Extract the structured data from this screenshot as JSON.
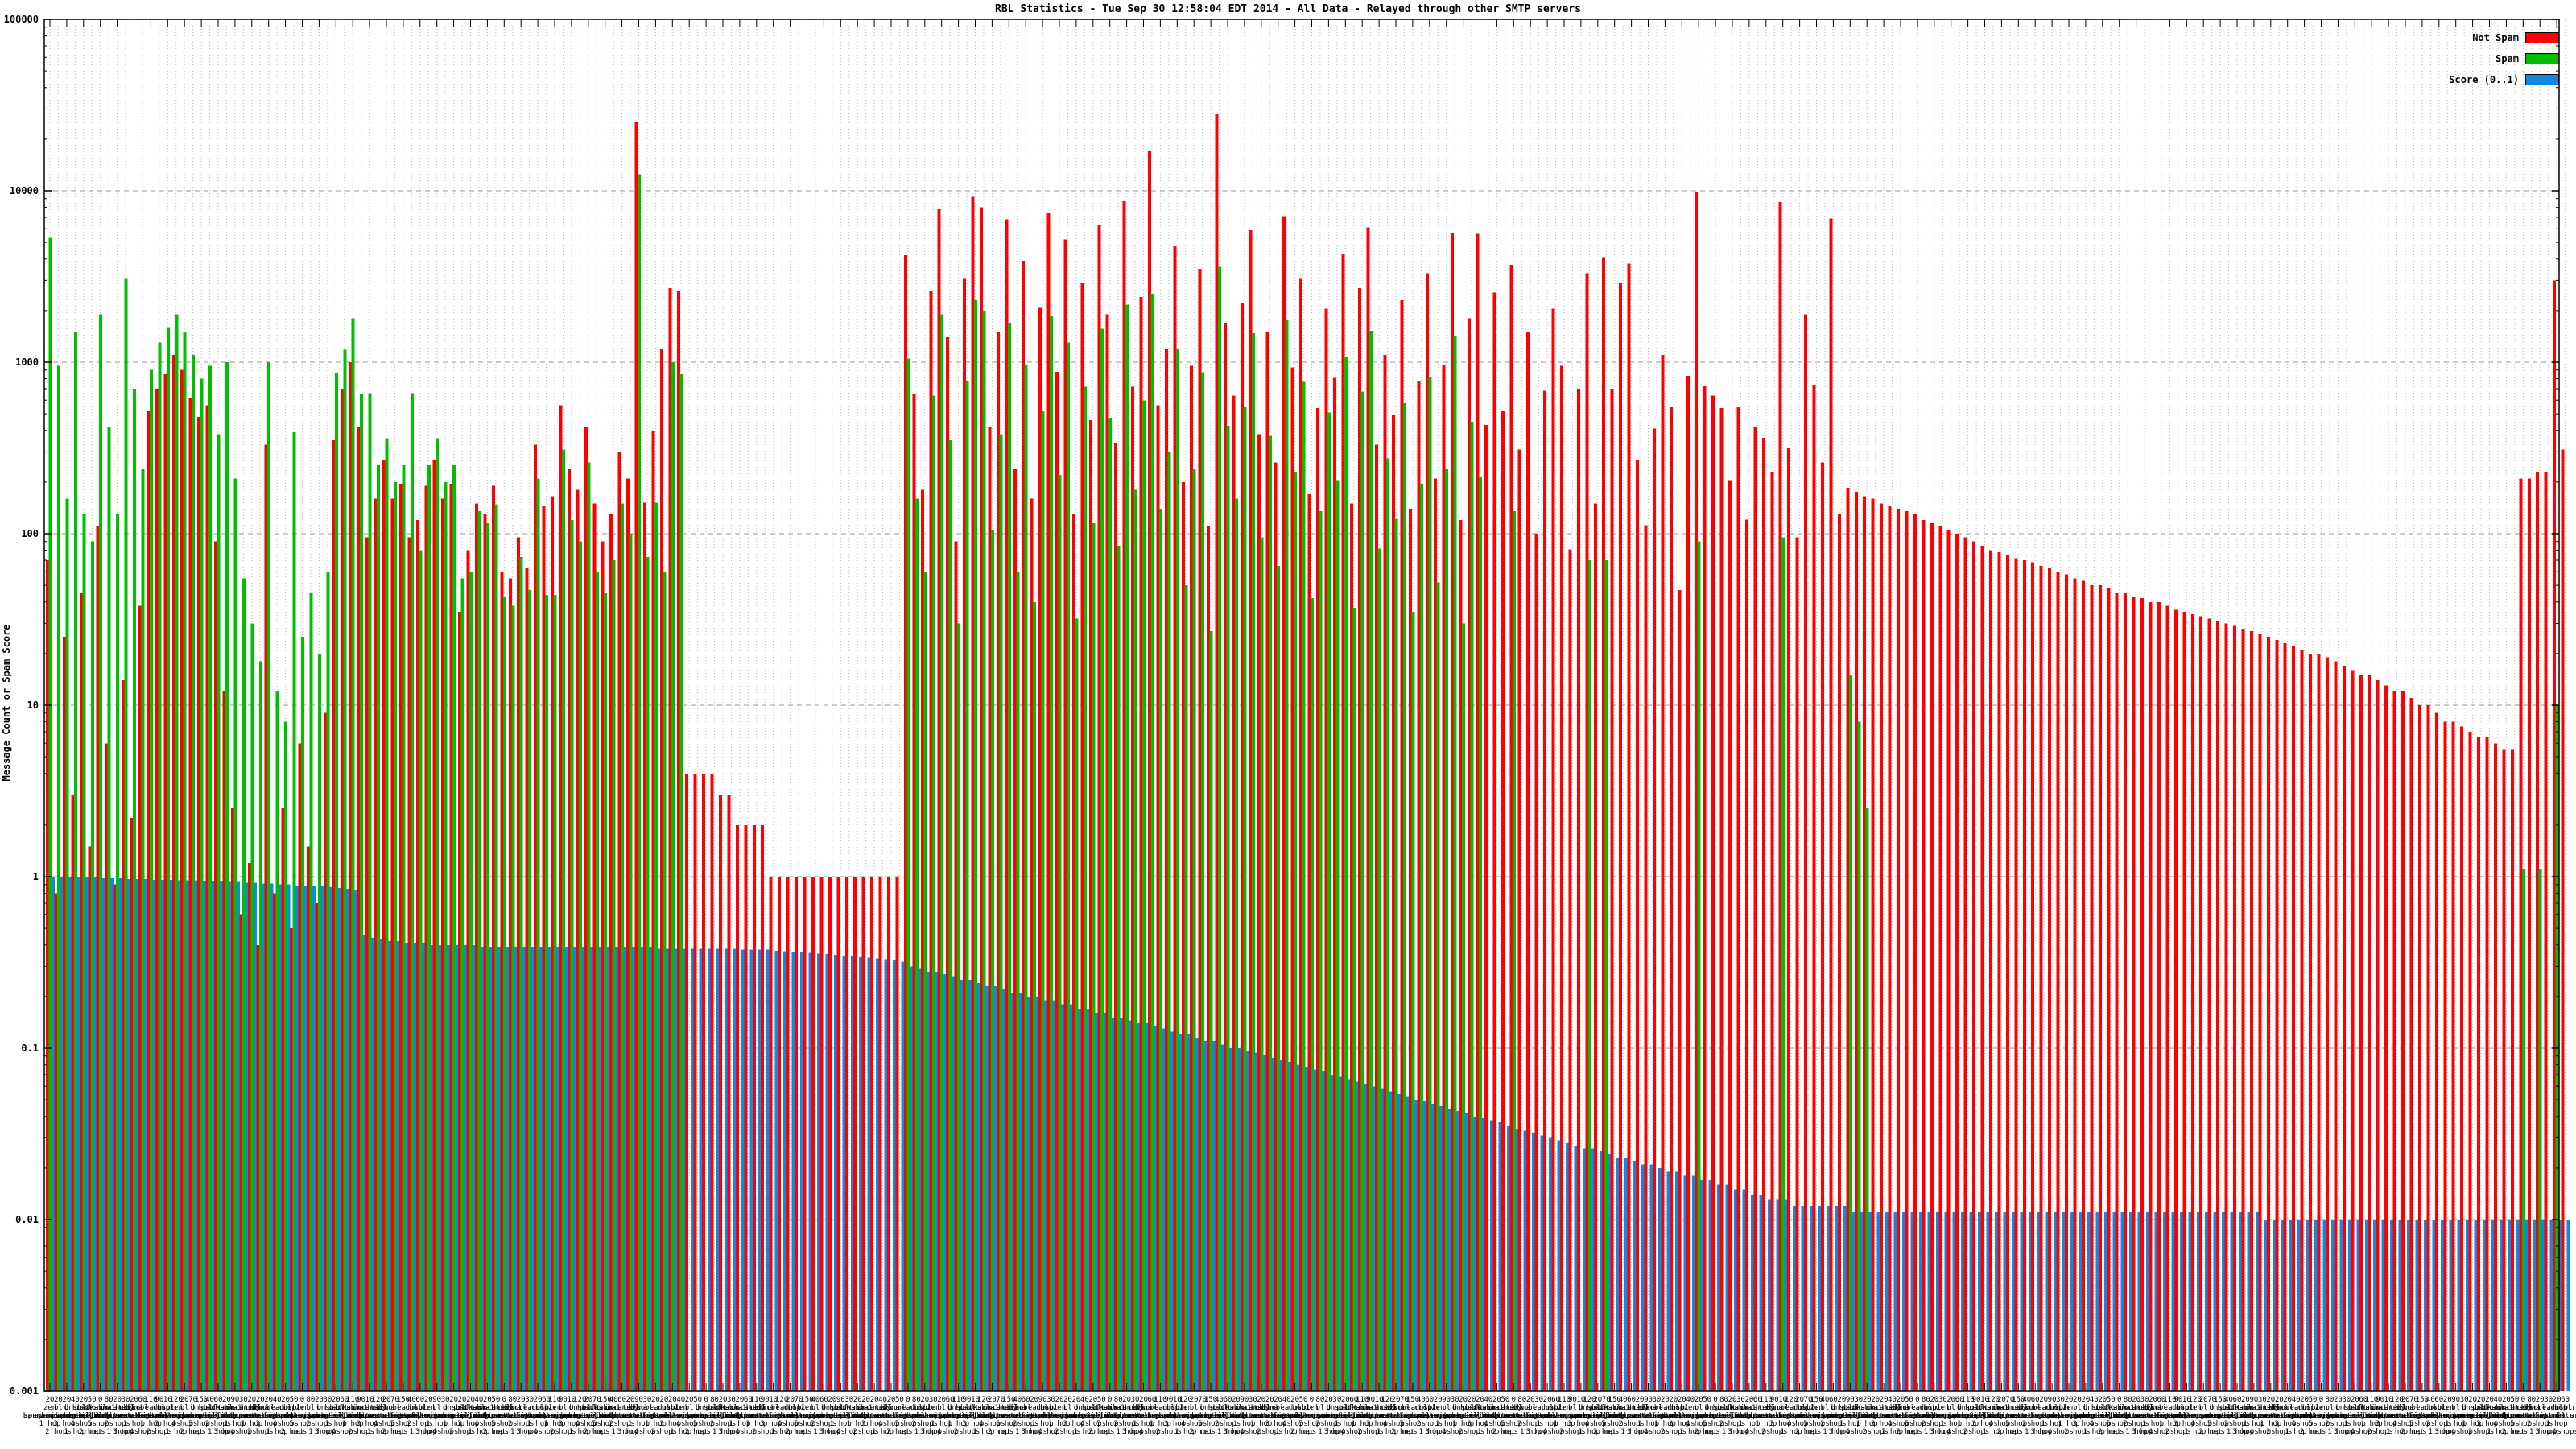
{
  "title": "RBL Statistics - Tue Sep 30 12:58:04 EDT 2014 - All Data - Relayed through other SMTP servers",
  "legend": {
    "not_spam_label": "Not Spam",
    "spam_label": "Spam",
    "score_label": "Score (0..1)"
  },
  "colors": {
    "not_spam": "#ff0000",
    "spam": "#00bf00",
    "score": "#1287e0",
    "grid_v": "#b8b8b8",
    "grid_h": "#9a9a9a",
    "frame": "#000000"
  },
  "y_axis": {
    "title": "Message Count or Spam Score",
    "tick_labels": [
      "100000",
      "10000",
      "1000",
      "100",
      "10",
      "1",
      "0.1",
      "0.01",
      "0.001"
    ],
    "tick_values": [
      100000,
      10000,
      1000,
      100,
      10,
      1,
      0.1,
      0.01,
      0.001
    ]
  },
  "chart_data": {
    "type": "bar",
    "y_scale": "log",
    "ylim": [
      0.001,
      100000
    ],
    "grid": true,
    "legend_position": "top-right",
    "series_names": [
      "Not Spam",
      "Spam",
      "Score (0..1)"
    ],
    "x_label_pools": {
      "counts": [
        20,
        20,
        20,
        40,
        20,
        50,
        0,
        80,
        20,
        30,
        20,
        60,
        110,
        90,
        10,
        120,
        20,
        70,
        150,
        40,
        60,
        20,
        90,
        30
      ],
      "hosts": [
        [
          "zen",
          "spamhaus.org"
        ],
        [
          "bl",
          "spamcop.net"
        ],
        [
          "b",
          "barracudacentral.org"
        ],
        [
          "dnsbl",
          "sorbs.net"
        ],
        [
          "psbl",
          "surriel.com"
        ],
        [
          "hostkarma",
          "junkemailfilter.com"
        ],
        [
          "dnsbl-1",
          "uceprotect.net"
        ],
        [
          "truncate",
          "gbudb.net"
        ],
        [
          "ix.dnsbl",
          "manitu.net"
        ],
        [
          "cbl",
          "abuseat.org"
        ],
        [
          "dyna",
          "spamrats.com"
        ],
        [
          "korea",
          "services.net"
        ],
        [
          "virbl.dnsbl",
          "bit.nl"
        ],
        [
          "rbl",
          "efnetrbl.org"
        ],
        [
          "noptr",
          "spamrats.com"
        ]
      ],
      "hops": [
        "1 hop",
        "2 hops",
        "3 hops",
        "1 hop",
        "4 hops",
        "2 hops",
        "5 hops",
        "net 1 hop",
        "2 hops",
        "3 hops",
        "1 hop",
        "4 hops"
      ]
    },
    "bars": [
      [
        70,
        5300,
        1
      ],
      [
        0.8,
        950,
        1
      ],
      [
        25,
        160,
        1
      ],
      [
        3,
        1500,
        0.99
      ],
      [
        45,
        130,
        0.99
      ],
      [
        1.5,
        90,
        0.99
      ],
      [
        110,
        1900,
        0.98
      ],
      [
        6,
        420,
        0.98
      ],
      [
        0.9,
        130,
        0.98
      ],
      [
        14,
        3100,
        0.97
      ],
      [
        2.2,
        700,
        0.97
      ],
      [
        38,
        240,
        0.97
      ],
      [
        520,
        900,
        0.96
      ],
      [
        700,
        1300,
        0.96
      ],
      [
        850,
        1600,
        0.96
      ],
      [
        1100,
        1900,
        0.95
      ],
      [
        900,
        1500,
        0.95
      ],
      [
        620,
        1100,
        0.95
      ],
      [
        480,
        800,
        0.94
      ],
      [
        560,
        950,
        0.94
      ],
      [
        90,
        380,
        0.94
      ],
      [
        12,
        1000,
        0.93
      ],
      [
        2.5,
        210,
        0.93
      ],
      [
        0.6,
        55,
        0.92
      ],
      [
        1.2,
        30,
        0.92
      ],
      [
        0.4,
        18,
        0.91
      ],
      [
        330,
        1000,
        0.91
      ],
      [
        0.8,
        12,
        0.9
      ],
      [
        2.5,
        8,
        0.9
      ],
      [
        0.5,
        390,
        0.89
      ],
      [
        6,
        25,
        0.89
      ],
      [
        1.5,
        45,
        0.88
      ],
      [
        0.7,
        20,
        0.88
      ],
      [
        9,
        60,
        0.87
      ],
      [
        350,
        870,
        0.86
      ],
      [
        700,
        1180,
        0.85
      ],
      [
        1000,
        1800,
        0.84
      ],
      [
        420,
        650,
        0.46
      ],
      [
        95,
        660,
        0.44
      ],
      [
        160,
        250,
        0.43
      ],
      [
        270,
        360,
        0.42
      ],
      [
        160,
        200,
        0.42
      ],
      [
        195,
        250,
        0.41
      ],
      [
        95,
        660,
        0.41
      ],
      [
        120,
        80,
        0.41
      ],
      [
        190,
        250,
        0.4
      ],
      [
        270,
        360,
        0.4
      ],
      [
        160,
        200,
        0.4
      ],
      [
        195,
        250,
        0.4
      ],
      [
        35,
        55,
        0.4
      ],
      [
        80,
        60,
        0.4
      ],
      [
        150,
        135,
        0.39
      ],
      [
        130,
        115,
        0.39
      ],
      [
        190,
        148,
        0.39
      ],
      [
        60,
        43,
        0.39
      ],
      [
        55,
        38,
        0.39
      ],
      [
        95,
        73,
        0.39
      ],
      [
        63,
        47,
        0.39
      ],
      [
        330,
        210,
        0.39
      ],
      [
        145,
        44,
        0.39
      ],
      [
        165,
        44,
        0.39
      ],
      [
        560,
        310,
        0.39
      ],
      [
        240,
        120,
        0.39
      ],
      [
        180,
        90,
        0.39
      ],
      [
        420,
        260,
        0.39
      ],
      [
        150,
        60,
        0.39
      ],
      [
        90,
        45,
        0.39
      ],
      [
        130,
        70,
        0.39
      ],
      [
        300,
        150,
        0.39
      ],
      [
        210,
        100,
        0.39
      ],
      [
        25000,
        12500,
        0.39
      ],
      [
        152,
        73,
        0.39
      ],
      [
        400,
        152,
        0.38
      ],
      [
        1200,
        60,
        0.38
      ],
      [
        2700,
        1000,
        0.38
      ],
      [
        2600,
        860,
        0.38
      ],
      [
        4,
        0,
        0.38
      ],
      [
        4,
        0,
        0.38
      ],
      [
        4,
        0,
        0.38
      ],
      [
        4,
        0,
        0.38
      ],
      [
        3,
        0,
        0.38
      ],
      [
        3,
        0,
        0.38
      ],
      [
        2,
        0,
        0.375
      ],
      [
        2,
        0,
        0.375
      ],
      [
        2,
        0,
        0.375
      ],
      [
        2,
        0,
        0.375
      ],
      [
        1,
        0,
        0.37
      ],
      [
        1,
        0,
        0.368
      ],
      [
        1,
        0,
        0.365
      ],
      [
        1,
        0,
        0.362
      ],
      [
        1,
        0,
        0.36
      ],
      [
        1,
        0,
        0.357
      ],
      [
        1,
        0,
        0.354
      ],
      [
        1,
        0,
        0.35
      ],
      [
        1,
        0,
        0.347
      ],
      [
        1,
        0,
        0.344
      ],
      [
        1,
        0,
        0.34
      ],
      [
        1,
        0,
        0.337
      ],
      [
        1,
        0,
        0.333
      ],
      [
        1,
        0,
        0.33
      ],
      [
        1,
        0,
        0.325
      ],
      [
        1,
        0,
        0.32
      ],
      [
        4200,
        1050,
        0.3
      ],
      [
        650,
        160,
        0.29
      ],
      [
        180,
        60,
        0.28
      ],
      [
        2600,
        640,
        0.28
      ],
      [
        7800,
        1900,
        0.27
      ],
      [
        1400,
        350,
        0.26
      ],
      [
        90,
        30,
        0.25
      ],
      [
        3100,
        780,
        0.25
      ],
      [
        9200,
        2300,
        0.24
      ],
      [
        8000,
        2000,
        0.23
      ],
      [
        420,
        105,
        0.23
      ],
      [
        1500,
        380,
        0.22
      ],
      [
        6800,
        1700,
        0.21
      ],
      [
        240,
        60,
        0.21
      ],
      [
        3900,
        970,
        0.2
      ],
      [
        160,
        40,
        0.2
      ],
      [
        2100,
        520,
        0.19
      ],
      [
        7400,
        1850,
        0.19
      ],
      [
        880,
        220,
        0.18
      ],
      [
        5200,
        1300,
        0.18
      ],
      [
        130,
        32,
        0.17
      ],
      [
        2900,
        720,
        0.17
      ],
      [
        460,
        115,
        0.16
      ],
      [
        6300,
        1570,
        0.16
      ],
      [
        1900,
        475,
        0.15
      ],
      [
        340,
        85,
        0.15
      ],
      [
        8700,
        2170,
        0.145
      ],
      [
        720,
        180,
        0.14
      ],
      [
        2400,
        600,
        0.14
      ],
      [
        17000,
        2500,
        0.135
      ],
      [
        560,
        140,
        0.13
      ],
      [
        1200,
        300,
        0.125
      ],
      [
        4800,
        1200,
        0.12
      ],
      [
        200,
        50,
        0.12
      ],
      [
        950,
        240,
        0.115
      ],
      [
        3500,
        875,
        0.11
      ],
      [
        110,
        27,
        0.11
      ],
      [
        28000,
        3600,
        0.105
      ],
      [
        1700,
        425,
        0.1
      ],
      [
        640,
        160,
        0.1
      ],
      [
        2200,
        550,
        0.097
      ],
      [
        5900,
        1475,
        0.094
      ],
      [
        380,
        95,
        0.091
      ],
      [
        1500,
        375,
        0.088
      ],
      [
        260,
        65,
        0.085
      ],
      [
        7100,
        1775,
        0.083
      ],
      [
        930,
        230,
        0.08
      ],
      [
        3100,
        775,
        0.078
      ],
      [
        170,
        42,
        0.075
      ],
      [
        540,
        135,
        0.073
      ],
      [
        2050,
        510,
        0.07
      ],
      [
        820,
        205,
        0.068
      ],
      [
        4300,
        1075,
        0.066
      ],
      [
        150,
        37,
        0.064
      ],
      [
        2700,
        675,
        0.062
      ],
      [
        6100,
        1525,
        0.06
      ],
      [
        330,
        82,
        0.058
      ],
      [
        1100,
        275,
        0.056
      ],
      [
        490,
        122,
        0.054
      ],
      [
        2300,
        575,
        0.052
      ],
      [
        140,
        35,
        0.05
      ],
      [
        780,
        195,
        0.049
      ],
      [
        3300,
        825,
        0.047
      ],
      [
        210,
        52,
        0.046
      ],
      [
        960,
        240,
        0.044
      ],
      [
        5700,
        1425,
        0.043
      ],
      [
        120,
        30,
        0.042
      ],
      [
        1800,
        450,
        0.04
      ],
      [
        5600,
        215,
        0.039
      ],
      [
        430,
        0,
        0.038
      ],
      [
        2550,
        0,
        0.037
      ],
      [
        520,
        0,
        0.035
      ],
      [
        3700,
        135,
        0.034
      ],
      [
        310,
        0,
        0.033
      ],
      [
        1500,
        0,
        0.032
      ],
      [
        100,
        0,
        0.031
      ],
      [
        680,
        0,
        0.03
      ],
      [
        2050,
        0,
        0.029
      ],
      [
        950,
        0,
        0.028
      ],
      [
        81,
        0,
        0.027
      ],
      [
        700,
        0,
        0.026
      ],
      [
        3300,
        70,
        0.026
      ],
      [
        150,
        0,
        0.025
      ],
      [
        4100,
        70,
        0.024
      ],
      [
        700,
        0,
        0.023
      ],
      [
        2900,
        0,
        0.023
      ],
      [
        3750,
        0,
        0.022
      ],
      [
        270,
        0,
        0.021
      ],
      [
        112,
        0,
        0.021
      ],
      [
        410,
        0,
        0.02
      ],
      [
        1100,
        0,
        0.019
      ],
      [
        545,
        0,
        0.019
      ],
      [
        47,
        0,
        0.018
      ],
      [
        830,
        0,
        0.018
      ],
      [
        9800,
        90,
        0.017
      ],
      [
        730,
        0,
        0.017
      ],
      [
        640,
        0,
        0.016
      ],
      [
        540,
        0,
        0.016
      ],
      [
        205,
        0,
        0.015
      ],
      [
        545,
        0,
        0.015
      ],
      [
        121,
        0,
        0.014
      ],
      [
        420,
        0,
        0.014
      ],
      [
        362,
        0,
        0.013
      ],
      [
        230,
        0,
        0.013
      ],
      [
        8600,
        95,
        0.013
      ],
      [
        315,
        0,
        0.012
      ],
      [
        95,
        0,
        0.012
      ],
      [
        1900,
        0,
        0.012
      ],
      [
        740,
        0,
        0.012
      ],
      [
        260,
        0,
        0.012
      ],
      [
        6900,
        0,
        0.012
      ],
      [
        130,
        0,
        0.012
      ],
      [
        185,
        15,
        0.011
      ],
      [
        175,
        8,
        0.011
      ],
      [
        165,
        2.5,
        0.011
      ],
      [
        160,
        0,
        0.011
      ],
      [
        150,
        0,
        0.011
      ],
      [
        145,
        0,
        0.011
      ],
      [
        140,
        0,
        0.011
      ],
      [
        135,
        0,
        0.011
      ],
      [
        130,
        0,
        0.011
      ],
      [
        120,
        0,
        0.011
      ],
      [
        115,
        0,
        0.011
      ],
      [
        110,
        0,
        0.011
      ],
      [
        105,
        0,
        0.011
      ],
      [
        100,
        0,
        0.011
      ],
      [
        95,
        0,
        0.011
      ],
      [
        90,
        0,
        0.011
      ],
      [
        85,
        0,
        0.011
      ],
      [
        80,
        0,
        0.011
      ],
      [
        78,
        0,
        0.011
      ],
      [
        75,
        0,
        0.011
      ],
      [
        72,
        0,
        0.011
      ],
      [
        70,
        0,
        0.011
      ],
      [
        68,
        0,
        0.011
      ],
      [
        65,
        0,
        0.011
      ],
      [
        63,
        0,
        0.011
      ],
      [
        60,
        0,
        0.011
      ],
      [
        58,
        0,
        0.011
      ],
      [
        55,
        0,
        0.011
      ],
      [
        53,
        0,
        0.011
      ],
      [
        50,
        0,
        0.011
      ],
      [
        50,
        0,
        0.011
      ],
      [
        48,
        0,
        0.011
      ],
      [
        45,
        0,
        0.011
      ],
      [
        45,
        0,
        0.011
      ],
      [
        43,
        0,
        0.011
      ],
      [
        42,
        0,
        0.011
      ],
      [
        40,
        0,
        0.011
      ],
      [
        40,
        0,
        0.011
      ],
      [
        38,
        0,
        0.011
      ],
      [
        36,
        0,
        0.011
      ],
      [
        35,
        0,
        0.011
      ],
      [
        34,
        0,
        0.011
      ],
      [
        33,
        0,
        0.011
      ],
      [
        32,
        0,
        0.011
      ],
      [
        31,
        0,
        0.011
      ],
      [
        30,
        0,
        0.011
      ],
      [
        29,
        0,
        0.011
      ],
      [
        28,
        0,
        0.011
      ],
      [
        27,
        0,
        0.011
      ],
      [
        26,
        0,
        0.01
      ],
      [
        25,
        0,
        0.01
      ],
      [
        24,
        0,
        0.01
      ],
      [
        23,
        0,
        0.01
      ],
      [
        22,
        0,
        0.01
      ],
      [
        21,
        0,
        0.01
      ],
      [
        20,
        0,
        0.01
      ],
      [
        20,
        0,
        0.01
      ],
      [
        19,
        0,
        0.01
      ],
      [
        18,
        0,
        0.01
      ],
      [
        17,
        0,
        0.01
      ],
      [
        16,
        0,
        0.01
      ],
      [
        15,
        0,
        0.01
      ],
      [
        15,
        0,
        0.01
      ],
      [
        14,
        0,
        0.01
      ],
      [
        13,
        0,
        0.01
      ],
      [
        12,
        0,
        0.01
      ],
      [
        12,
        0,
        0.01
      ],
      [
        11,
        0,
        0.01
      ],
      [
        10,
        0,
        0.01
      ],
      [
        10,
        0,
        0.01
      ],
      [
        9,
        0,
        0.01
      ],
      [
        8,
        0,
        0.01
      ],
      [
        8,
        0,
        0.01
      ],
      [
        7.5,
        0,
        0.01
      ],
      [
        7,
        0,
        0.01
      ],
      [
        6.5,
        0,
        0.01
      ],
      [
        6.5,
        0,
        0.01
      ],
      [
        6,
        0,
        0.01
      ],
      [
        5.5,
        0,
        0.01
      ],
      [
        5.5,
        0,
        0.01
      ],
      [
        210,
        1.1,
        0.01
      ],
      [
        210,
        0,
        0.01
      ],
      [
        230,
        1.1,
        0.01
      ],
      [
        230,
        0,
        0.01
      ],
      [
        3000,
        10,
        0.01
      ],
      [
        310,
        0,
        0.01
      ]
    ]
  }
}
